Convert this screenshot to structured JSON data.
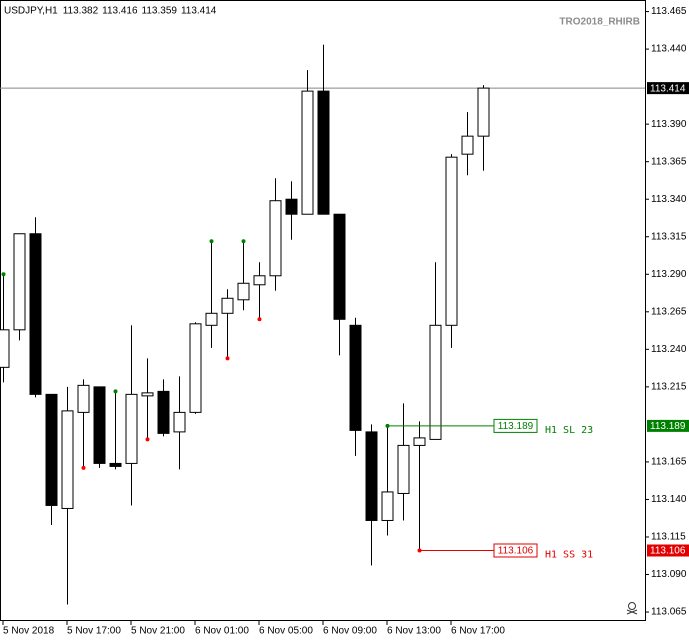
{
  "chart_data": {
    "type": "candlestick",
    "title": "USDJPY,H1",
    "watermark": "TRO2018_RHIRB",
    "categories": [
      "5 Nov 2018",
      null,
      null,
      null,
      "5 Nov 17:00",
      null,
      null,
      null,
      "5 Nov 21:00",
      null,
      null,
      null,
      "6 Nov 01:00",
      null,
      null,
      null,
      "6 Nov 05:00",
      null,
      null,
      null,
      "6 Nov 09:00",
      null,
      null,
      null,
      "6 Nov 13:00",
      null,
      null,
      null,
      "6 Nov 17:00",
      null,
      null
    ],
    "open": [
      113.228,
      113.253,
      113.317,
      113.21,
      113.134,
      113.198,
      113.215,
      113.164,
      113.164,
      113.209,
      113.212,
      113.185,
      113.198,
      113.256,
      113.264,
      113.273,
      113.283,
      113.289,
      113.34,
      113.33,
      113.412,
      113.33,
      113.256,
      113.185,
      113.126,
      113.144,
      113.176,
      113.18,
      113.256,
      113.37,
      113.382
    ],
    "high": [
      113.29,
      113.317,
      113.328,
      113.21,
      113.215,
      113.22,
      113.215,
      113.212,
      113.256,
      113.234,
      113.22,
      113.222,
      113.258,
      113.312,
      113.28,
      113.312,
      113.298,
      113.354,
      113.352,
      113.426,
      113.443,
      113.33,
      113.261,
      113.19,
      113.189,
      113.204,
      113.192,
      113.298,
      113.37,
      113.398,
      113.416
    ],
    "low": [
      113.218,
      113.246,
      113.208,
      113.123,
      113.07,
      113.161,
      113.161,
      113.16,
      113.136,
      113.18,
      113.182,
      113.16,
      113.197,
      113.241,
      113.234,
      113.266,
      113.26,
      113.279,
      113.313,
      113.33,
      113.33,
      113.236,
      113.169,
      113.096,
      113.116,
      113.126,
      113.106,
      113.18,
      113.241,
      113.356,
      113.359
    ],
    "close": [
      113.253,
      113.317,
      113.21,
      113.136,
      113.199,
      113.216,
      113.164,
      113.162,
      113.21,
      113.211,
      113.184,
      113.198,
      113.257,
      113.264,
      113.274,
      113.284,
      113.289,
      113.339,
      113.33,
      113.412,
      113.33,
      113.26,
      113.186,
      113.126,
      113.145,
      113.176,
      113.181,
      113.256,
      113.368,
      113.382,
      113.414
    ],
    "up_color": "#ffffff",
    "down_color": "#000000",
    "up_marks": [
      113.29,
      null,
      null,
      null,
      null,
      null,
      null,
      113.212,
      null,
      null,
      null,
      null,
      null,
      113.312,
      null,
      113.312,
      null,
      null,
      null,
      null,
      null,
      null,
      null,
      null,
      113.189,
      null,
      null,
      null,
      null,
      null,
      null
    ],
    "down_marks": [
      null,
      null,
      null,
      null,
      null,
      113.161,
      null,
      null,
      null,
      113.18,
      null,
      null,
      null,
      null,
      113.234,
      null,
      113.26,
      null,
      null,
      null,
      null,
      null,
      null,
      null,
      null,
      null,
      113.106,
      null,
      null,
      null,
      null
    ],
    "up_mark_color": "#008000",
    "down_mark_color": "#ff0000",
    "levels": [
      {
        "value": 113.189,
        "label": "H1 SL 23",
        "color": "#008000"
      },
      {
        "value": 113.106,
        "label": "H1 SS 31",
        "color": "#e00000"
      }
    ],
    "ylim": [
      113.0597,
      113.4727
    ],
    "yticks": [
      113.465,
      {
        "value": 113.44,
        "label": "113.440"
      },
      {
        "value": 113.39,
        "label": "113.390"
      },
      113.365,
      {
        "value": 113.34,
        "label": "113.340"
      },
      113.315,
      {
        "value": 113.29,
        "label": "113.290"
      },
      113.265,
      {
        "value": 113.24,
        "label": "113.240"
      },
      113.215,
      113.165,
      {
        "value": 113.14,
        "label": "113.140"
      },
      113.115,
      {
        "value": 113.09,
        "label": "113.090"
      },
      113.065
    ],
    "grid": false
  }
}
